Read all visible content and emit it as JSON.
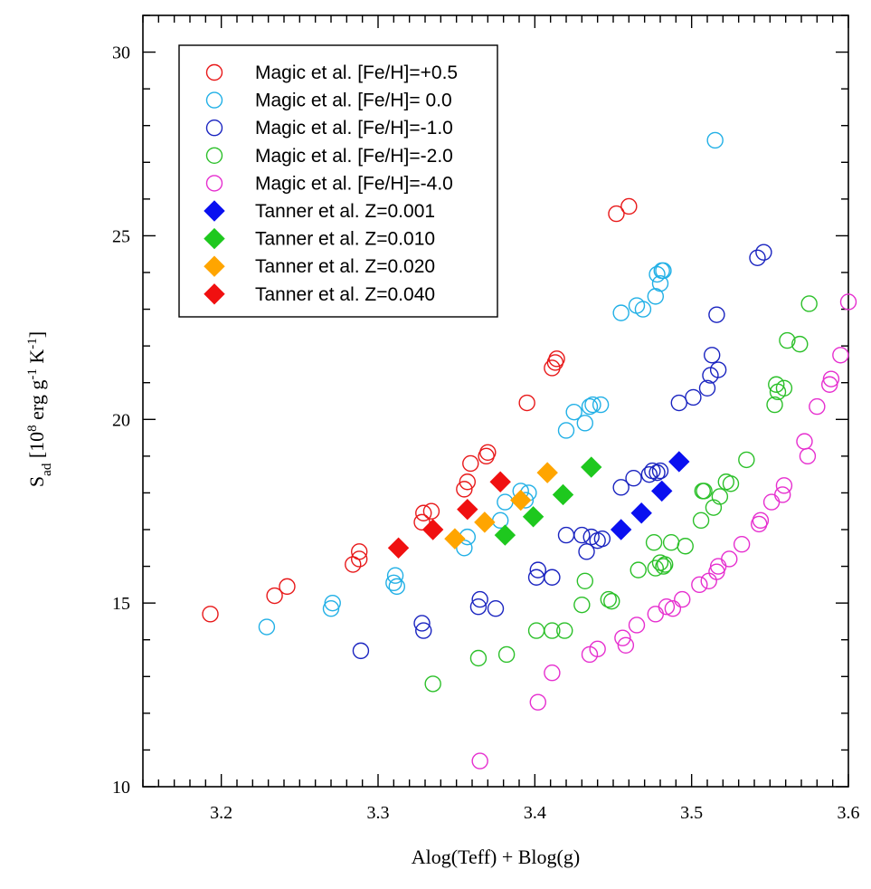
{
  "chart_data": {
    "type": "scatter",
    "title": "",
    "xlabel": "Alog(Teff) + Blog(g)",
    "ylabel": {
      "main": "S",
      "sub": "ad",
      "units_prefix": " [10",
      "exp8": "8",
      "erg": " erg g",
      "exp_g": "-1",
      "K": " K",
      "exp_k": "-1",
      "close": "]"
    },
    "xlim": [
      3.15,
      3.6
    ],
    "ylim": [
      10,
      31
    ],
    "xticks": [
      3.2,
      3.3,
      3.4,
      3.5,
      3.6
    ],
    "xtick_labels": [
      "3.2",
      "3.3",
      "3.4",
      "3.5",
      "3.6"
    ],
    "yticks": [
      10,
      15,
      20,
      25,
      30
    ],
    "ytick_labels": [
      "10",
      "15",
      "20",
      "25",
      "30"
    ],
    "grid": false,
    "legend_position": "top-left",
    "series": [
      {
        "name": "Magic et al. [Fe/H]=+0.5",
        "marker": "open-circle",
        "color": "#e8191a",
        "x": [
          3.193,
          3.234,
          3.242,
          3.284,
          3.288,
          3.288,
          3.328,
          3.329,
          3.334,
          3.355,
          3.357,
          3.359,
          3.369,
          3.37,
          3.395,
          3.411,
          3.413,
          3.414,
          3.452,
          3.46
        ],
        "y": [
          14.7,
          15.2,
          15.45,
          16.05,
          16.2,
          16.4,
          17.2,
          17.45,
          17.5,
          18.1,
          18.3,
          18.8,
          19.0,
          19.1,
          20.45,
          21.4,
          21.55,
          21.65,
          25.6,
          25.8
        ]
      },
      {
        "name": "Magic et al. [Fe/H]= 0.0",
        "marker": "open-circle",
        "color": "#22b0e6",
        "x": [
          3.229,
          3.27,
          3.271,
          3.31,
          3.311,
          3.312,
          3.355,
          3.357,
          3.378,
          3.381,
          3.391,
          3.394,
          3.396,
          3.42,
          3.425,
          3.432,
          3.435,
          3.437,
          3.442,
          3.455,
          3.465,
          3.469,
          3.477,
          3.478,
          3.48,
          3.481,
          3.482,
          3.515
        ],
        "y": [
          14.35,
          14.85,
          15.0,
          15.55,
          15.75,
          15.45,
          16.5,
          16.8,
          17.25,
          17.75,
          18.05,
          17.8,
          18.0,
          19.7,
          20.2,
          19.9,
          20.35,
          20.4,
          20.4,
          22.9,
          23.1,
          23.0,
          23.35,
          23.95,
          23.7,
          24.05,
          24.05,
          27.6
        ]
      },
      {
        "name": "Magic et al. [Fe/H]=-1.0",
        "marker": "open-circle",
        "color": "#1a24c0",
        "x": [
          3.289,
          3.328,
          3.329,
          3.364,
          3.365,
          3.375,
          3.401,
          3.402,
          3.411,
          3.42,
          3.43,
          3.433,
          3.436,
          3.44,
          3.443,
          3.455,
          3.463,
          3.473,
          3.475,
          3.478,
          3.48,
          3.492,
          3.501,
          3.51,
          3.512,
          3.513,
          3.516,
          3.517,
          3.542,
          3.546
        ],
        "y": [
          13.7,
          14.45,
          14.25,
          14.9,
          15.1,
          14.85,
          15.7,
          15.9,
          15.7,
          16.85,
          16.85,
          16.4,
          16.8,
          16.7,
          16.75,
          18.15,
          18.4,
          18.5,
          18.6,
          18.55,
          18.6,
          20.45,
          20.6,
          20.85,
          21.2,
          21.75,
          22.85,
          21.35,
          24.4,
          24.55
        ]
      },
      {
        "name": "Magic et al. [Fe/H]=-2.0",
        "marker": "open-circle",
        "color": "#2cc02a",
        "x": [
          3.335,
          3.364,
          3.382,
          3.401,
          3.411,
          3.419,
          3.43,
          3.432,
          3.447,
          3.449,
          3.466,
          3.476,
          3.477,
          3.48,
          3.482,
          3.483,
          3.487,
          3.496,
          3.506,
          3.507,
          3.508,
          3.514,
          3.518,
          3.522,
          3.525,
          3.535,
          3.553,
          3.554,
          3.555,
          3.559,
          3.561,
          3.569,
          3.575
        ],
        "y": [
          12.8,
          13.5,
          13.6,
          14.25,
          14.25,
          14.25,
          14.95,
          15.6,
          15.1,
          15.05,
          15.9,
          16.65,
          15.95,
          16.1,
          16.0,
          16.05,
          16.65,
          16.55,
          17.25,
          18.05,
          18.05,
          17.6,
          17.9,
          18.3,
          18.25,
          18.9,
          20.4,
          20.95,
          20.75,
          20.85,
          22.15,
          22.05,
          23.15
        ]
      },
      {
        "name": "Magic et al. [Fe/H]=-4.0",
        "marker": "open-circle",
        "color": "#e62fcf",
        "x": [
          3.365,
          3.402,
          3.411,
          3.435,
          3.44,
          3.456,
          3.458,
          3.465,
          3.477,
          3.484,
          3.488,
          3.494,
          3.505,
          3.511,
          3.516,
          3.517,
          3.524,
          3.532,
          3.543,
          3.544,
          3.551,
          3.558,
          3.559,
          3.572,
          3.574,
          3.58,
          3.588,
          3.589,
          3.595,
          3.6
        ],
        "y": [
          10.7,
          12.3,
          13.1,
          13.6,
          13.75,
          14.05,
          13.85,
          14.4,
          14.7,
          14.9,
          14.85,
          15.1,
          15.5,
          15.6,
          15.85,
          16.0,
          16.2,
          16.6,
          17.15,
          17.25,
          17.75,
          17.95,
          18.2,
          19.4,
          19.0,
          20.35,
          20.95,
          21.1,
          21.75,
          23.2
        ]
      },
      {
        "name": "Tanner et al. Z=0.001",
        "marker": "filled-diamond",
        "color": "#0a10f0",
        "x": [
          3.455,
          3.468,
          3.481,
          3.492
        ],
        "y": [
          17.0,
          17.45,
          18.05,
          18.85
        ]
      },
      {
        "name": "Tanner et al. Z=0.010",
        "marker": "filled-diamond",
        "color": "#1ec81e",
        "x": [
          3.381,
          3.399,
          3.418,
          3.436
        ],
        "y": [
          16.85,
          17.35,
          17.95,
          18.7
        ]
      },
      {
        "name": "Tanner et al. Z=0.020",
        "marker": "filled-diamond",
        "color": "#ffa500",
        "x": [
          3.349,
          3.368,
          3.391,
          3.408
        ],
        "y": [
          16.75,
          17.2,
          17.8,
          18.55
        ]
      },
      {
        "name": "Tanner et al. Z=0.040",
        "marker": "filled-diamond",
        "color": "#f01010",
        "x": [
          3.313,
          3.335,
          3.357,
          3.378
        ],
        "y": [
          16.5,
          17.0,
          17.55,
          18.3
        ]
      }
    ]
  }
}
